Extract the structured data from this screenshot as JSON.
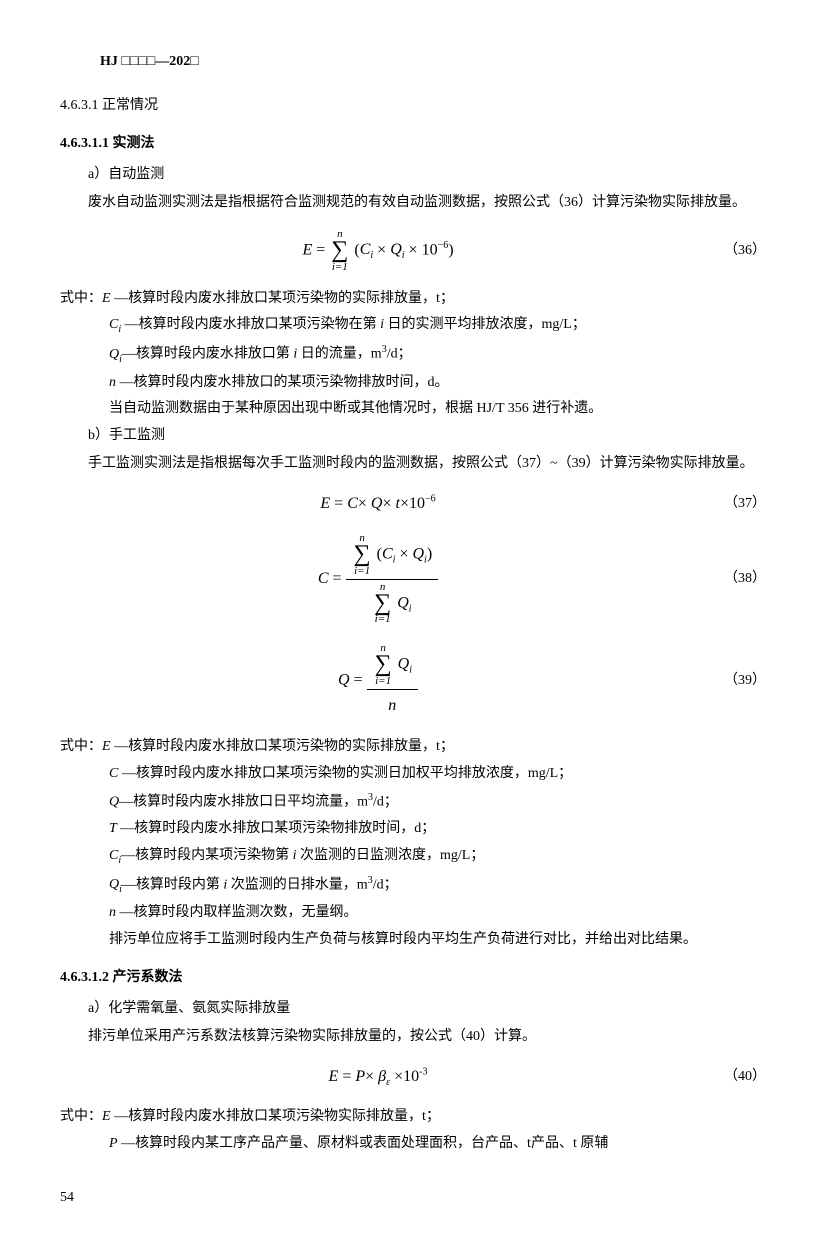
{
  "header": "HJ □□□□—202□",
  "sec_4_6_3_1": "4.6.3.1 正常情况",
  "sec_4_6_3_1_1": "4.6.3.1.1  实测法",
  "a1_label": "a）自动监测",
  "a1_para": "废水自动监测实测法是指根据符合监测规范的有效自动监测数据，按照公式（36）计算污染物实际排放量。",
  "eq36_num": "（36）",
  "def_prefix": "式中：",
  "def36_E": "E —核算时段内废水排放口某项污染物的实际排放量，t；",
  "def36_Ci": "Cᵢ —核算时段内废水排放口某项污染物在第 i 日的实测平均排放浓度，mg/L；",
  "def36_Qi": "Qᵢ—核算时段内废水排放口第 i 日的流量，m³/d；",
  "def36_n": "n —核算时段内废水排放口的某项污染物排放时间，d。",
  "a1_note": "当自动监测数据由于某种原因出现中断或其他情况时，根据 HJ/T 356 进行补遗。",
  "b1_label": "b）手工监测",
  "b1_para": "手工监测实测法是指根据每次手工监测时段内的监测数据，按照公式（37）~（39）计算污染物实际排放量。",
  "eq37_num": "（37）",
  "eq38_num": "（38）",
  "eq39_num": "（39）",
  "def37_E": "E —核算时段内废水排放口某项污染物的实际排放量，t；",
  "def37_C": "C —核算时段内废水排放口某项污染物的实测日加权平均排放浓度，mg/L；",
  "def37_Q": "Q—核算时段内废水排放口日平均流量，m³/d；",
  "def37_T": "T —核算时段内废水排放口某项污染物排放时间，d；",
  "def37_Ci": "Cᵢ—核算时段内某项污染物第 i 次监测的日监测浓度，mg/L；",
  "def37_Qi": "Qᵢ—核算时段内第 i 次监测的日排水量，m³/d；",
  "def37_n": "n —核算时段内取样监测次数，无量纲。",
  "b1_note": "排污单位应将手工监测时段内生产负荷与核算时段内平均生产负荷进行对比，并给出对比结果。",
  "sec_4_6_3_1_2": "4.6.3.1.2  产污系数法",
  "a2_label": "a）化学需氧量、氨氮实际排放量",
  "a2_para": "排污单位采用产污系数法核算污染物实际排放量的，按公式（40）计算。",
  "eq40_num": "（40）",
  "def40_E": "E —核算时段内废水排放口某项污染物实际排放量，t；",
  "def40_P": "P —核算时段内某工序产品产量、原材料或表面处理面积，台产品、t产品、t 原辅",
  "page_num": "54"
}
